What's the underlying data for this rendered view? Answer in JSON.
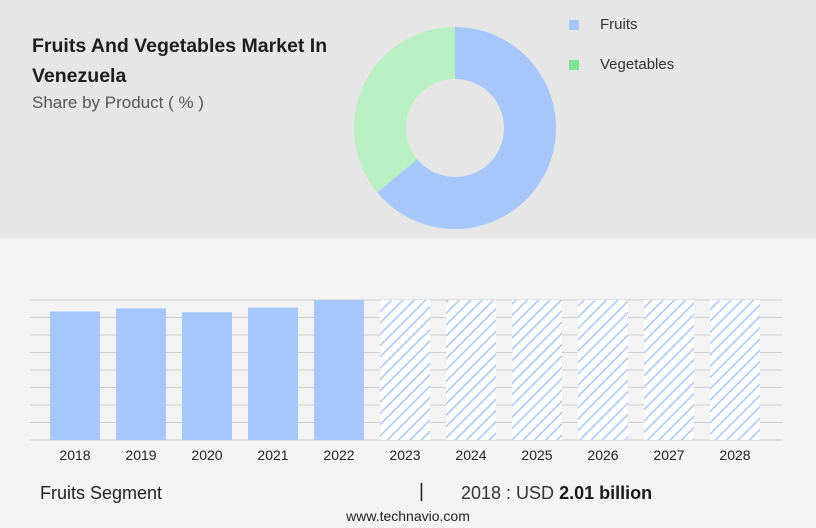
{
  "header": {
    "title": "Fruits And Vegetables Market In Venezuela",
    "subtitle": "Share by Product ( % )"
  },
  "legend": [
    {
      "label": "Fruits",
      "color": "#a7c7fb"
    },
    {
      "label": "Vegetables",
      "color": "#7ee397"
    }
  ],
  "footer": {
    "segment_label": "Fruits Segment",
    "separator": "|",
    "year_prefix": "2018 : USD",
    "value_text": "2.01 billion",
    "source": "www.technavio.com"
  },
  "chart_data": [
    {
      "type": "pie",
      "donut": true,
      "series": [
        {
          "name": "Fruits",
          "value": 64,
          "color": "#a7c7fb"
        },
        {
          "name": "Vegetables",
          "value": 36,
          "color": "#b8f0c3"
        }
      ]
    },
    {
      "type": "bar",
      "categories": [
        "2018",
        "2019",
        "2020",
        "2021",
        "2022",
        "2023",
        "2024",
        "2025",
        "2026",
        "2027",
        "2028"
      ],
      "values": [
        2.01,
        2.06,
        2.0,
        2.07,
        2.19,
        null,
        null,
        null,
        null,
        null,
        null
      ],
      "forecast_from": "2023",
      "bar_color": "#a7c7fb",
      "grid": true,
      "ylim": [
        0,
        2.19
      ],
      "y_tick_labels": false
    }
  ]
}
